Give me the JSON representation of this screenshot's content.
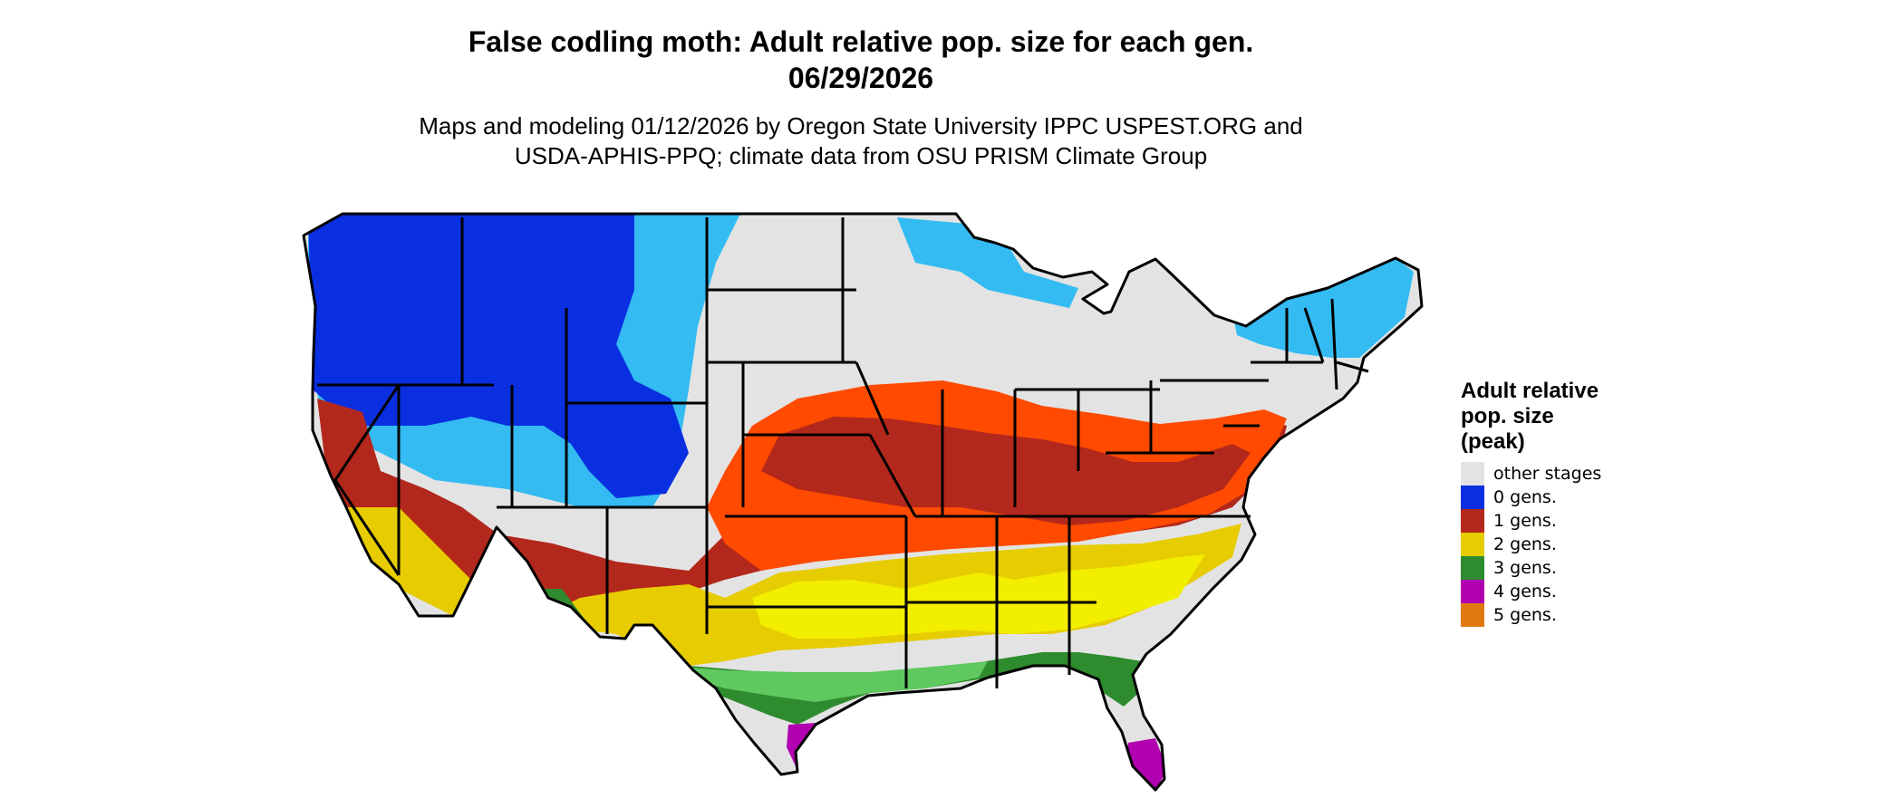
{
  "title_line1": "False codling moth: Adult relative pop. size for each gen.",
  "title_line2": "06/29/2026",
  "subtitle_line1": "Maps and modeling 01/12/2026 by Oregon State University IPPC USPEST.ORG and",
  "subtitle_line2": "USDA-APHIS-PPQ; climate data from OSU PRISM Climate Group",
  "legend": {
    "title_line1": "Adult relative",
    "title_line2": "pop. size",
    "title_line3": "(peak)",
    "items": [
      {
        "label": "other stages",
        "color": "#e3e3e3"
      },
      {
        "label": "0 gens.",
        "color": "#0a2fe0"
      },
      {
        "label": "1 gens.",
        "color": "#b3281c"
      },
      {
        "label": "2 gens.",
        "color": "#e6cc00"
      },
      {
        "label": "3 gens.",
        "color": "#2e8b2e"
      },
      {
        "label": "4 gens.",
        "color": "#b000b0"
      },
      {
        "label": "5 gens.",
        "color": "#e07a10"
      }
    ]
  },
  "map_colors": {
    "background": "#e3e3e3",
    "light_blue": "#33bbf2",
    "orange_red": "#ff4a00",
    "bright_yellow": "#f2ee00",
    "light_green": "#5fc85f",
    "borders": "#000000"
  }
}
